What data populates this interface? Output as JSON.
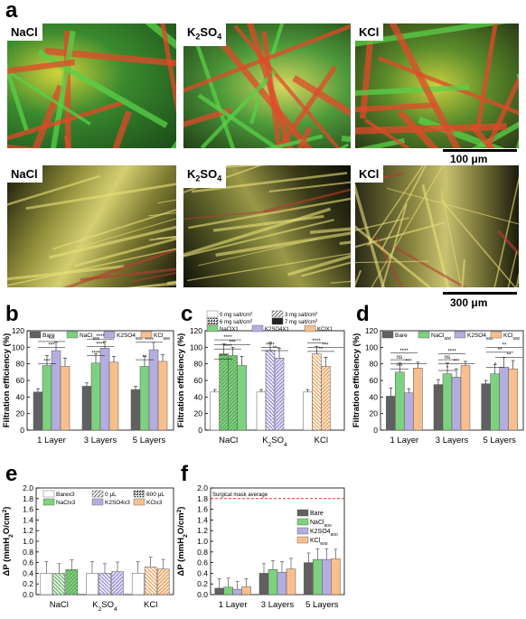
{
  "panel_letters": {
    "a": "a",
    "b": "b",
    "c": "c",
    "d": "d",
    "e": "e",
    "f": "f"
  },
  "micrographs": {
    "top": [
      {
        "label": "NaCl"
      },
      {
        "label": "K",
        "sub": "2",
        "label2": "SO",
        "sub2": "4"
      },
      {
        "label": "KCl"
      }
    ],
    "bottom": [
      {
        "label": "NaCl"
      },
      {
        "label": "K",
        "sub": "2",
        "label2": "SO",
        "sub2": "4"
      },
      {
        "label": "KCl"
      }
    ],
    "scale_top": "100 μm",
    "scale_bottom": "300 μm"
  },
  "colors": {
    "bare": "#606060",
    "nacl": "#7ed17e",
    "k2so4": "#b4aee0",
    "kcl": "#f8bf8e",
    "surgical_line": "#e03030"
  },
  "chart_data": [
    {
      "panel": "b",
      "type": "bar",
      "ylabel": "Filtration efficiency (%)",
      "ylim": [
        0,
        120
      ],
      "yticks": [
        0,
        20,
        40,
        60,
        80,
        100,
        120
      ],
      "categories": [
        "1 Layer",
        "3 Layers",
        "5 Layers"
      ],
      "legend": [
        {
          "name": "Bare"
        },
        {
          "name": "NaCl",
          "sub": "600"
        },
        {
          "name": "K2SO4",
          "sub": "600"
        },
        {
          "name": "KCl",
          "sub": "600"
        }
      ],
      "series": [
        {
          "name": "Bare",
          "values": [
            46,
            53,
            49
          ],
          "errors": [
            4,
            4,
            4
          ]
        },
        {
          "name": "NaCl600",
          "values": [
            78,
            81,
            77
          ],
          "errors": [
            12,
            11,
            12
          ]
        },
        {
          "name": "K2SO4600",
          "values": [
            96,
            99,
            97
          ],
          "errors": [
            10,
            8,
            9
          ]
        },
        {
          "name": "KCl600",
          "values": [
            77,
            82,
            83
          ],
          "errors": [
            10,
            7,
            8
          ]
        }
      ],
      "sig_labels": [
        "***",
        "***",
        "****",
        "****",
        "***",
        "****",
        "**",
        "****"
      ]
    },
    {
      "panel": "c",
      "type": "bar",
      "ylabel": "Filtration efficiency (%)",
      "ylim": [
        0,
        120
      ],
      "yticks": [
        0,
        20,
        40,
        60,
        80,
        100,
        120
      ],
      "categories": [
        {
          "t": "NaCl"
        },
        {
          "t": "K",
          "sub": "2",
          "t2": "SO",
          "sub2": "4"
        },
        {
          "t": "KCl"
        }
      ],
      "legend": [
        {
          "name": "0 mg salt/cm",
          "sup": "2"
        },
        {
          "name": "3 mg salt/cm",
          "sup": "2"
        },
        {
          "name": "6 mg salt/cm",
          "sup": "2"
        },
        {
          "name": "7 mg salt/cm",
          "sup": "2"
        },
        {
          "name": "NaClX1"
        },
        {
          "name": "K2SO4X1"
        },
        {
          "name": "KClX1"
        }
      ],
      "series": [
        {
          "name": "0 mg",
          "values": [
            46,
            46,
            46
          ],
          "errors": [
            3,
            3,
            3
          ]
        },
        {
          "name": "3 mg",
          "values": [
            92,
            96,
            92
          ],
          "errors": [
            12,
            10,
            9
          ]
        },
        {
          "name": "6 mg",
          "values": [
            90,
            87,
            77
          ],
          "errors": [
            10,
            12,
            11
          ]
        },
        {
          "name": "7 mg",
          "values": [
            78,
            null,
            null
          ],
          "errors": [
            11,
            null,
            null
          ]
        }
      ],
      "sig_labels": [
        "****",
        "****",
        "***",
        "****",
        "**",
        "****",
        "**",
        "****",
        "***"
      ]
    },
    {
      "panel": "d",
      "type": "bar",
      "ylabel": "Filtration efficiency (%)",
      "ylim": [
        0,
        120
      ],
      "yticks": [
        0,
        20,
        40,
        60,
        80,
        100,
        120
      ],
      "categories": [
        "1 Layer",
        "3 Layers",
        "5 Layers"
      ],
      "legend": [
        {
          "name": "Bare"
        },
        {
          "name": "NaCl",
          "sub": "600"
        },
        {
          "name": "K2SO4",
          "sub": "600"
        },
        {
          "name": "KCl",
          "sub": "600"
        }
      ],
      "series": [
        {
          "name": "Bare",
          "values": [
            41,
            55,
            56
          ],
          "errors": [
            10,
            6,
            4
          ]
        },
        {
          "name": "NaCl600",
          "values": [
            70,
            68,
            68
          ],
          "errors": [
            11,
            13,
            11
          ]
        },
        {
          "name": "K2SO4600",
          "values": [
            45,
            64,
            76
          ],
          "errors": [
            5,
            10,
            12
          ]
        },
        {
          "name": "KCl600",
          "values": [
            75,
            78,
            74
          ],
          "errors": [
            7,
            5,
            10
          ]
        }
      ],
      "sig_labels": [
        "****",
        "ns",
        "***",
        "***",
        "****",
        "ns",
        "*",
        "***",
        "**",
        "**",
        "*",
        "**"
      ]
    },
    {
      "panel": "e",
      "type": "bar",
      "ylabel": "ΔP (mmH2O/cm2)",
      "ylim": [
        0,
        2.0
      ],
      "yticks": [
        0.0,
        0.2,
        0.4,
        0.6,
        0.8,
        1.0,
        1.2,
        1.4,
        1.6,
        1.8,
        2.0
      ],
      "categories": [
        {
          "t": "NaCl"
        },
        {
          "t": "K",
          "sub": "2",
          "t2": "SO",
          "sub2": "4"
        },
        {
          "t": "KCl"
        }
      ],
      "legend": [
        {
          "name": "Barex3"
        },
        {
          "name": "0 μL"
        },
        {
          "name": "600 μL"
        },
        {
          "name": "NaClx3"
        },
        {
          "name": "K2SO4x3"
        },
        {
          "name": "KClx3"
        }
      ],
      "series": [
        {
          "name": "Barex3",
          "values": [
            0.4,
            0.4,
            0.4
          ],
          "errors": [
            0.22,
            0.22,
            0.22
          ]
        },
        {
          "name": "0 μL",
          "values": [
            0.4,
            0.4,
            0.52
          ],
          "errors": [
            0.18,
            0.18,
            0.18
          ]
        },
        {
          "name": "600 μL",
          "values": [
            0.47,
            0.43,
            0.48
          ],
          "errors": [
            0.18,
            0.18,
            0.18
          ]
        }
      ]
    },
    {
      "panel": "f",
      "type": "bar",
      "ylabel": "ΔP (mmH2O/cm2)",
      "ylim": [
        0,
        2.0
      ],
      "yticks": [
        0.0,
        0.2,
        0.4,
        0.6,
        0.8,
        1.0,
        1.2,
        1.4,
        1.6,
        1.8,
        2.0
      ],
      "categories": [
        "1 Layer",
        "3 Layers",
        "5 Layers"
      ],
      "annotation": "Surgical mask average",
      "annotation_value": 1.8,
      "legend": [
        {
          "name": "Bare"
        },
        {
          "name": "NaCl",
          "sub": "600"
        },
        {
          "name": "K2SO4",
          "sub": "600"
        },
        {
          "name": "KCl",
          "sub": "600"
        }
      ],
      "series": [
        {
          "name": "Bare",
          "values": [
            0.12,
            0.4,
            0.6
          ],
          "errors": [
            0.18,
            0.18,
            0.18
          ]
        },
        {
          "name": "NaCl600",
          "values": [
            0.14,
            0.47,
            0.66
          ],
          "errors": [
            0.17,
            0.17,
            0.2
          ]
        },
        {
          "name": "K2SO4600",
          "values": [
            0.1,
            0.42,
            0.66
          ],
          "errors": [
            0.15,
            0.2,
            0.2
          ]
        },
        {
          "name": "KCl600",
          "values": [
            0.15,
            0.48,
            0.67
          ],
          "errors": [
            0.15,
            0.2,
            0.18
          ]
        }
      ]
    }
  ]
}
